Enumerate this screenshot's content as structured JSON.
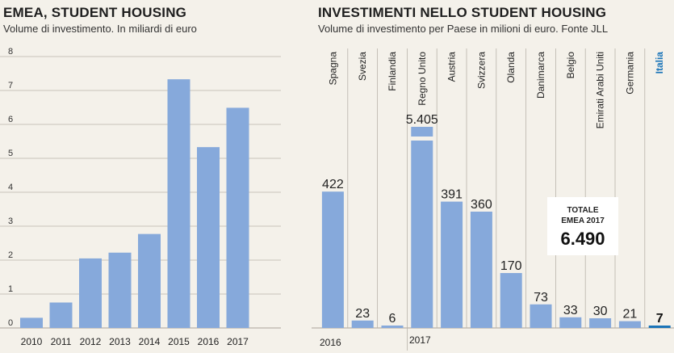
{
  "left": {
    "title": "EMEA, STUDENT HOUSING",
    "subtitle": "Volume di investimento. In miliardi di euro"
  },
  "right": {
    "title": "INVESTIMENTI NELLO STUDENT HOUSING",
    "subtitle": "Volume di investimento per Paese in milioni di euro. Fonte JLL",
    "total_label_1": "TOTALE",
    "total_label_2": "EMEA 2017",
    "total_value": "6.490",
    "year_2016": "2016",
    "year_2017": "2017"
  },
  "colors": {
    "bar": "#86a9db",
    "highlight": "#1a74b8",
    "grid": "#b9b4aa",
    "background": "#f4f1ea"
  },
  "chart_data": [
    {
      "type": "bar",
      "categories": [
        "2010",
        "2011",
        "2012",
        "2013",
        "2014",
        "2015",
        "2016",
        "2017"
      ],
      "values": [
        0.3,
        0.75,
        2.05,
        2.22,
        2.77,
        7.33,
        5.33,
        6.49
      ],
      "ylim": [
        0,
        8
      ],
      "yticks": [
        "0",
        "1",
        "2",
        "3",
        "4",
        "5",
        "6",
        "7",
        "8"
      ],
      "grid": true
    },
    {
      "type": "bar",
      "categories": [
        "Spagna",
        "Svezia",
        "Finlandia",
        "Regno Unito",
        "Austria",
        "Svizzera",
        "Olanda",
        "Danimarca",
        "Belgio",
        "Emirati Arabi Uniti",
        "Germania",
        "Italia"
      ],
      "values": [
        422,
        23,
        6,
        5405,
        391,
        360,
        170,
        73,
        33,
        30,
        21,
        7
      ],
      "value_labels": [
        "422",
        "23",
        "6",
        "5.405",
        "391",
        "360",
        "170",
        "73",
        "33",
        "30",
        "21",
        "7"
      ],
      "highlight": "Italia",
      "axis_break": "Regno Unito"
    }
  ]
}
